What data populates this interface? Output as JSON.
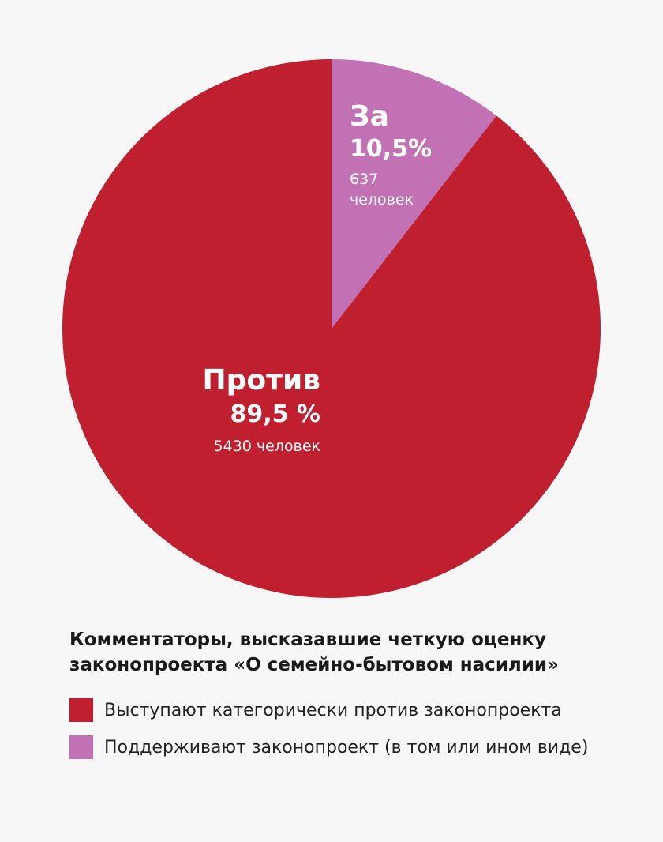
{
  "chart_data": {
    "type": "pie",
    "title": "Комментаторы, высказавшие четкую оценку законопроекта «О семейно-бытовом насилии»",
    "slices": [
      {
        "key": "za",
        "label": "За",
        "value": 10.5,
        "value_text": "10,5%",
        "count": 637,
        "count_line1": "637",
        "count_line2": "человек",
        "color": "#c272b4",
        "legend": "Поддерживают законопроект (в том или ином виде)"
      },
      {
        "key": "protiv",
        "label": "Против",
        "value": 89.5,
        "value_text": "89,5 %",
        "count": 5430,
        "count_text": "5430 человек",
        "color": "#bf1f2e",
        "legend": "Выступают категорически против законопроекта"
      }
    ],
    "start": "12 o'clock",
    "direction": "clockwise"
  }
}
